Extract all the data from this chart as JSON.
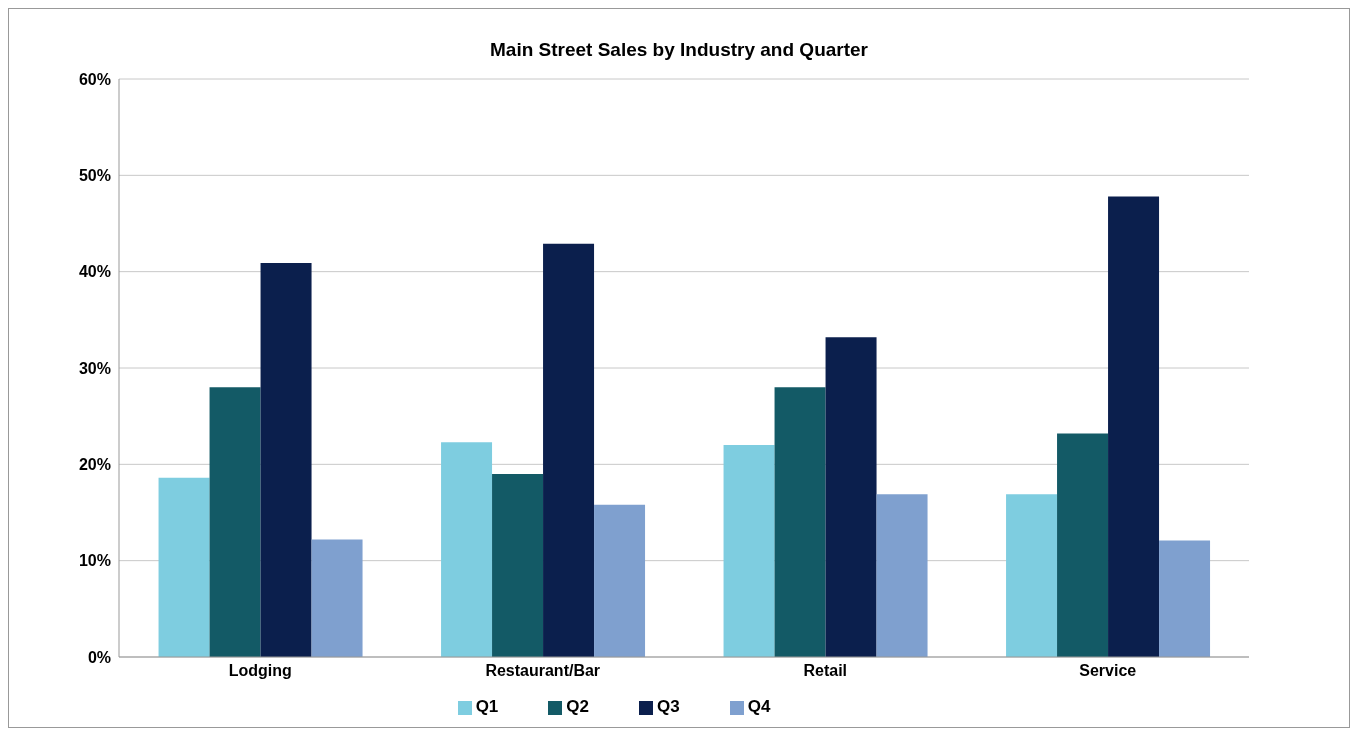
{
  "chart_data": {
    "type": "bar",
    "title": "Main Street Sales by Industry and Quarter",
    "categories": [
      "Lodging",
      "Restaurant/Bar",
      "Retail",
      "Service"
    ],
    "series": [
      {
        "name": "Q1",
        "color": "#7ecde0",
        "values": [
          18.6,
          22.3,
          22.0,
          16.9
        ]
      },
      {
        "name": "Q2",
        "color": "#135a66",
        "values": [
          28.0,
          19.0,
          28.0,
          23.2
        ]
      },
      {
        "name": "Q3",
        "color": "#0b1f4d",
        "values": [
          40.9,
          42.9,
          33.2,
          47.8
        ]
      },
      {
        "name": "Q4",
        "color": "#7fa0cf",
        "values": [
          12.2,
          15.8,
          16.9,
          12.1
        ]
      }
    ],
    "ylim": [
      0,
      60
    ],
    "yticks": [
      {
        "value": 0,
        "label": "0%"
      },
      {
        "value": 10,
        "label": "10%"
      },
      {
        "value": 20,
        "label": "20%"
      },
      {
        "value": 30,
        "label": "30%"
      },
      {
        "value": 40,
        "label": "40%"
      },
      {
        "value": 50,
        "label": "50%"
      },
      {
        "value": 60,
        "label": "60%"
      }
    ],
    "grid": "y",
    "legend": "bottom"
  }
}
